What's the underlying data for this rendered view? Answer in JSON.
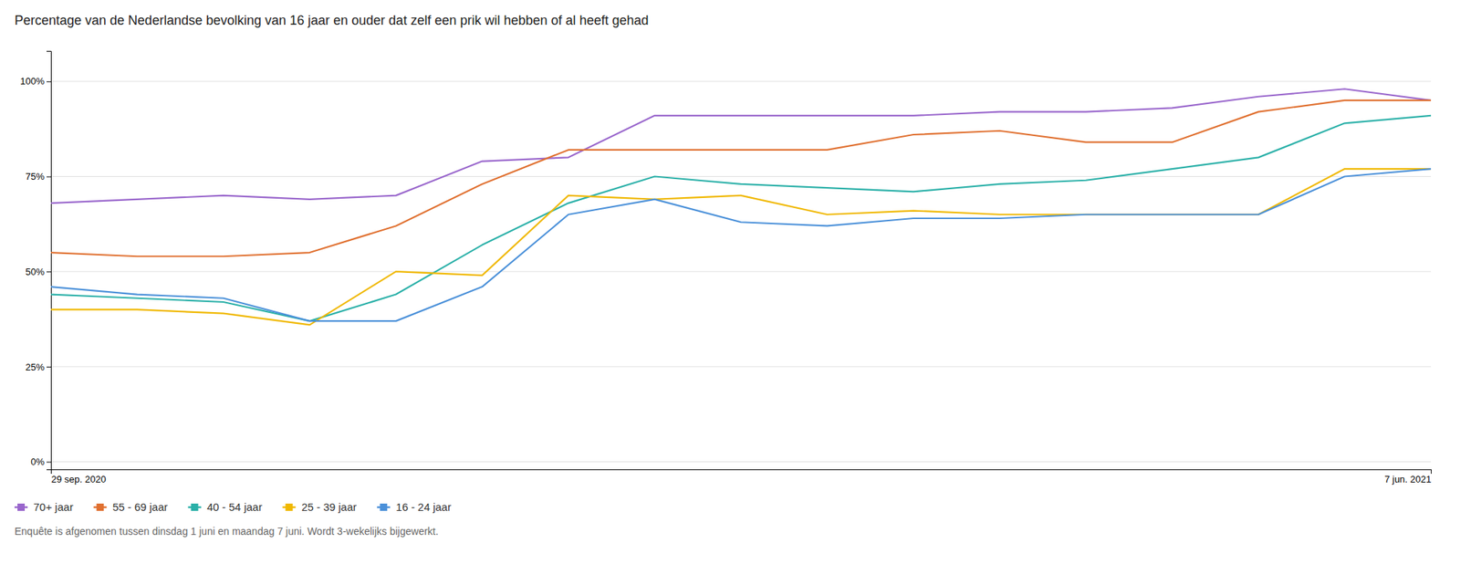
{
  "chart_data": {
    "type": "line",
    "title": "Percentage van de Nederlandse bevolking van 16 jaar en ouder dat zelf een prik wil hebben of al heeft gehad",
    "subtitle": "Enquête is afgenomen tussen dinsdag 1 juni en maandag 7 juni. Wordt 3-wekelijks bijgewerkt.",
    "categories": [
      "29 sep. 2020",
      null,
      null,
      null,
      null,
      null,
      null,
      null,
      null,
      null,
      null,
      null,
      null,
      null,
      null,
      null,
      "7 jun. 2021"
    ],
    "series": [
      {
        "name": "70+ jaar",
        "color": "#9966cc",
        "values": [
          68,
          69,
          70,
          69,
          70,
          79,
          80,
          91,
          91,
          91,
          91,
          92,
          92,
          93,
          96,
          98,
          95
        ]
      },
      {
        "name": "55 - 69 jaar",
        "color": "#e07030",
        "values": [
          55,
          54,
          54,
          55,
          62,
          73,
          82,
          82,
          82,
          82,
          86,
          87,
          84,
          84,
          92,
          95,
          95
        ]
      },
      {
        "name": "40 - 54 jaar",
        "color": "#2ab0a8",
        "values": [
          44,
          43,
          42,
          37,
          44,
          57,
          68,
          75,
          73,
          72,
          71,
          73,
          74,
          77,
          80,
          89,
          91
        ]
      },
      {
        "name": "25 - 39 jaar",
        "color": "#f0b800",
        "values": [
          40,
          40,
          39,
          36,
          50,
          49,
          70,
          69,
          70,
          65,
          66,
          65,
          65,
          65,
          65,
          77,
          77
        ]
      },
      {
        "name": "16 - 24 jaar",
        "color": "#4a90d9",
        "values": [
          46,
          44,
          43,
          37,
          37,
          46,
          65,
          69,
          63,
          62,
          64,
          64,
          65,
          65,
          65,
          75,
          77
        ]
      }
    ],
    "ylim": [
      -2,
      108
    ],
    "yticks": [
      {
        "value": 0,
        "label": "0%"
      },
      {
        "value": 25,
        "label": "25%"
      },
      {
        "value": 50,
        "label": "50%"
      },
      {
        "value": 75,
        "label": "75%"
      },
      {
        "value": 100,
        "label": "100%"
      }
    ],
    "grid": true,
    "legend": "bottom"
  }
}
